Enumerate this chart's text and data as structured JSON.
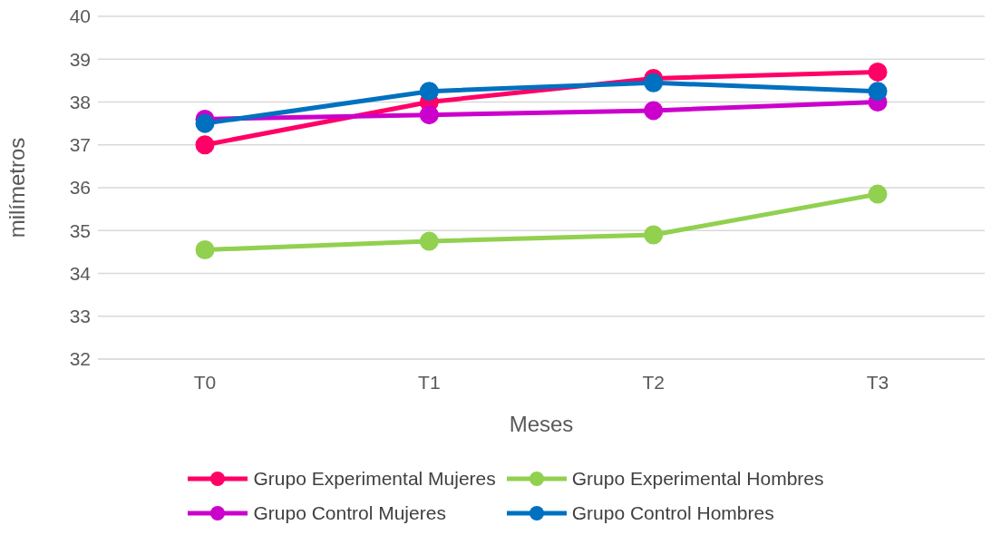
{
  "chart_data": {
    "type": "line",
    "xlabel": "Meses",
    "ylabel": "milímetros",
    "categories": [
      "T0",
      "T1",
      "T2",
      "T3"
    ],
    "series": [
      {
        "name": "Grupo Experimental Mujeres",
        "color": "#ff0066",
        "values": [
          37.0,
          38.0,
          38.55,
          38.7
        ]
      },
      {
        "name": "Grupo Experimental Hombres",
        "color": "#92d050",
        "values": [
          34.55,
          34.75,
          34.9,
          35.85
        ]
      },
      {
        "name": "Grupo Control Mujeres",
        "color": "#cc00cc",
        "values": [
          37.6,
          37.7,
          37.8,
          38.0
        ]
      },
      {
        "name": "Grupo Control Hombres",
        "color": "#0070c0",
        "values": [
          37.5,
          38.25,
          38.45,
          38.25
        ]
      }
    ],
    "ylim": [
      32,
      40
    ],
    "yticks": [
      32,
      33,
      34,
      35,
      36,
      37,
      38,
      39,
      40
    ],
    "grid": "y",
    "legend": "bottom",
    "marker": "circle",
    "line_style": "solid"
  }
}
